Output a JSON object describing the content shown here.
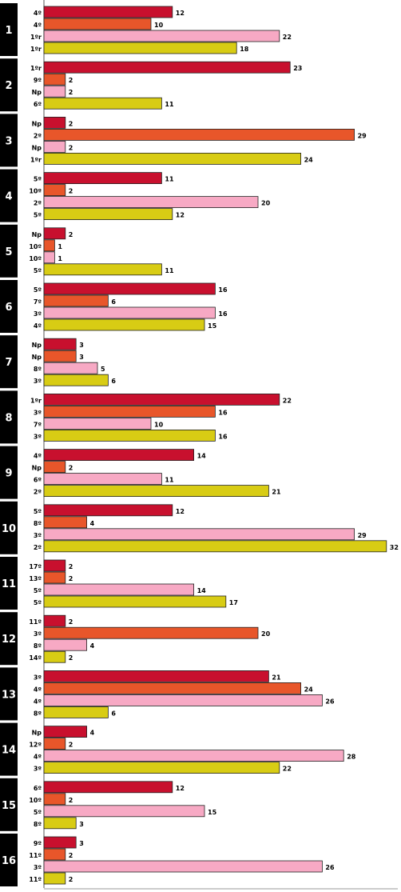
{
  "chart_data": {
    "type": "bar",
    "orientation": "horizontal",
    "grid": false,
    "legend": "none",
    "colors": [
      "#c8102e",
      "#e8562a",
      "#f7a9c4",
      "#d8cc14"
    ],
    "xlim": [
      0,
      32
    ],
    "groups": [
      {
        "label": "1",
        "bars": [
          {
            "rank": "4º",
            "value": 12
          },
          {
            "rank": "4º",
            "value": 10
          },
          {
            "rank": "1ºr",
            "value": 22
          },
          {
            "rank": "1ºr",
            "value": 18
          }
        ]
      },
      {
        "label": "2",
        "bars": [
          {
            "rank": "1ºr",
            "value": 23
          },
          {
            "rank": "9º",
            "value": 2
          },
          {
            "rank": "Np",
            "value": 2
          },
          {
            "rank": "6º",
            "value": 11
          }
        ]
      },
      {
        "label": "3",
        "bars": [
          {
            "rank": "Np",
            "value": 2
          },
          {
            "rank": "2º",
            "value": 29
          },
          {
            "rank": "Np",
            "value": 2
          },
          {
            "rank": "1ºr",
            "value": 24
          }
        ]
      },
      {
        "label": "4",
        "bars": [
          {
            "rank": "5º",
            "value": 11
          },
          {
            "rank": "10º",
            "value": 2
          },
          {
            "rank": "2º",
            "value": 20
          },
          {
            "rank": "5º",
            "value": 12
          }
        ]
      },
      {
        "label": "5",
        "bars": [
          {
            "rank": "Np",
            "value": 2
          },
          {
            "rank": "10º",
            "value": 1
          },
          {
            "rank": "10º",
            "value": 1
          },
          {
            "rank": "5º",
            "value": 11
          }
        ]
      },
      {
        "label": "6",
        "bars": [
          {
            "rank": "5º",
            "value": 16
          },
          {
            "rank": "7º",
            "value": 6
          },
          {
            "rank": "3º",
            "value": 16
          },
          {
            "rank": "4º",
            "value": 15
          }
        ]
      },
      {
        "label": "7",
        "bars": [
          {
            "rank": "Np",
            "value": 3
          },
          {
            "rank": "Np",
            "value": 3
          },
          {
            "rank": "8º",
            "value": 5
          },
          {
            "rank": "3º",
            "value": 6
          }
        ]
      },
      {
        "label": "8",
        "bars": [
          {
            "rank": "1ºr",
            "value": 22
          },
          {
            "rank": "3º",
            "value": 16
          },
          {
            "rank": "7º",
            "value": 10
          },
          {
            "rank": "3º",
            "value": 16
          }
        ]
      },
      {
        "label": "9",
        "bars": [
          {
            "rank": "4º",
            "value": 14
          },
          {
            "rank": "Np",
            "value": 2
          },
          {
            "rank": "6º",
            "value": 11
          },
          {
            "rank": "2º",
            "value": 21
          }
        ]
      },
      {
        "label": "10",
        "bars": [
          {
            "rank": "5º",
            "value": 12
          },
          {
            "rank": "8º",
            "value": 4
          },
          {
            "rank": "3º",
            "value": 29
          },
          {
            "rank": "2º",
            "value": 32
          }
        ]
      },
      {
        "label": "11",
        "bars": [
          {
            "rank": "17º",
            "value": 2
          },
          {
            "rank": "13º",
            "value": 2
          },
          {
            "rank": "5º",
            "value": 14
          },
          {
            "rank": "5º",
            "value": 17
          }
        ]
      },
      {
        "label": "12",
        "bars": [
          {
            "rank": "11º",
            "value": 2
          },
          {
            "rank": "3º",
            "value": 20
          },
          {
            "rank": "8º",
            "value": 4
          },
          {
            "rank": "14º",
            "value": 2
          }
        ]
      },
      {
        "label": "13",
        "bars": [
          {
            "rank": "3º",
            "value": 21
          },
          {
            "rank": "4º",
            "value": 24
          },
          {
            "rank": "4º",
            "value": 26
          },
          {
            "rank": "8º",
            "value": 6
          }
        ]
      },
      {
        "label": "14",
        "bars": [
          {
            "rank": "Np",
            "value": 4
          },
          {
            "rank": "12º",
            "value": 2
          },
          {
            "rank": "4º",
            "value": 28
          },
          {
            "rank": "3º",
            "value": 22
          }
        ]
      },
      {
        "label": "15",
        "bars": [
          {
            "rank": "6º",
            "value": 12
          },
          {
            "rank": "10º",
            "value": 2
          },
          {
            "rank": "5º",
            "value": 15
          },
          {
            "rank": "8º",
            "value": 3
          }
        ]
      },
      {
        "label": "16",
        "bars": [
          {
            "rank": "9º",
            "value": 3
          },
          {
            "rank": "11º",
            "value": 2
          },
          {
            "rank": "3º",
            "value": 26
          },
          {
            "rank": "11º",
            "value": 2
          }
        ]
      }
    ]
  }
}
